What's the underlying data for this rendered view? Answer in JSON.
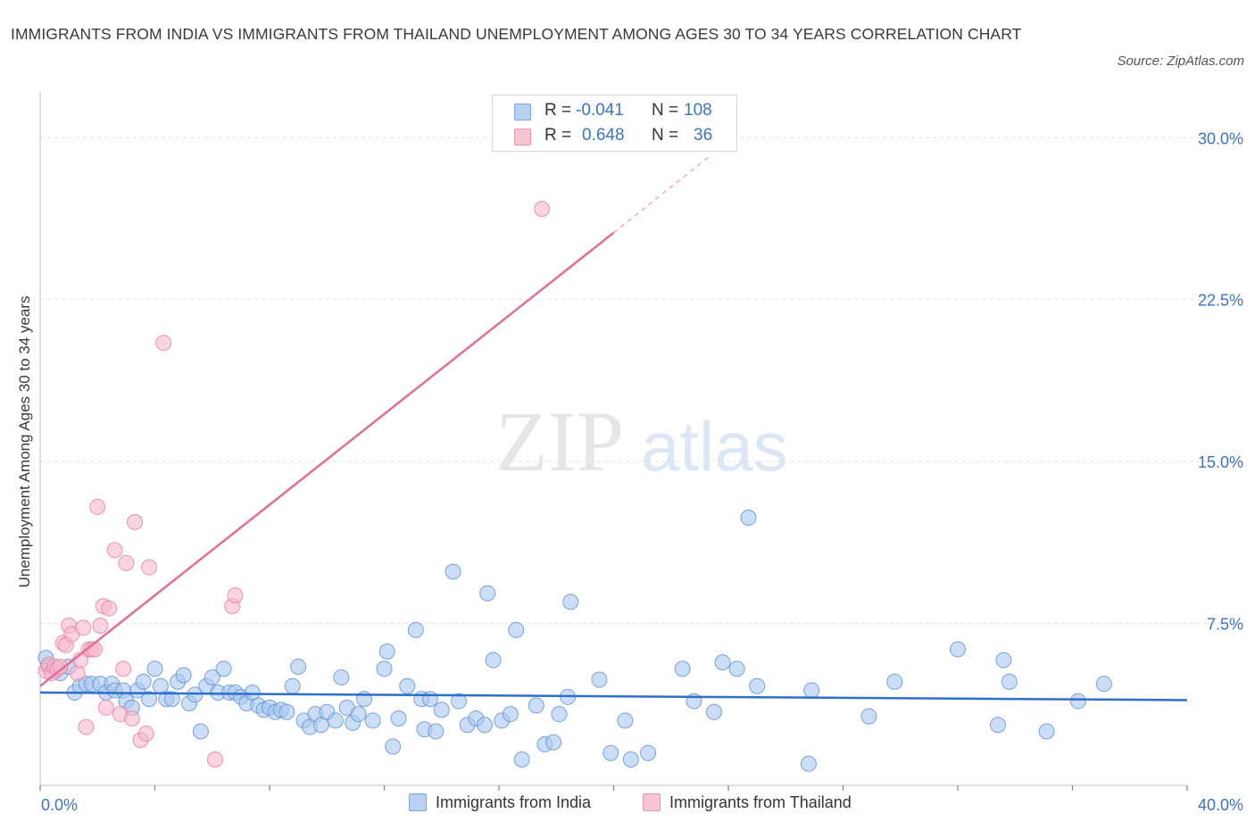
{
  "title": "IMMIGRANTS FROM INDIA VS IMMIGRANTS FROM THAILAND UNEMPLOYMENT AMONG AGES 30 TO 34 YEARS CORRELATION CHART",
  "source": "Source: ZipAtlas.com",
  "watermark": {
    "zip": "ZIP",
    "atlas": "atlas"
  },
  "legend": {
    "r_label": "R =",
    "n_label": "N =",
    "india": {
      "r": "-0.041",
      "n": "108"
    },
    "thailand": {
      "r": "0.648",
      "n": "36"
    }
  },
  "colors": {
    "india_fill": "#a9c8ef",
    "india_stroke": "#5b8fd6",
    "india_line": "#2f6fcc",
    "thailand_fill": "#f6b8cb",
    "thailand_stroke": "#e87da0",
    "thailand_line": "#e26e95",
    "axis_label": "#3b73c4",
    "grid": "#e2e2e2"
  },
  "chart_data": {
    "type": "scatter",
    "title": "IMMIGRANTS FROM INDIA VS IMMIGRANTS FROM THAILAND UNEMPLOYMENT AMONG AGES 30 TO 34 YEARS CORRELATION CHART",
    "xlabel": "",
    "ylabel": "Unemployment Among Ages 30 to 34 years",
    "xlim": [
      0,
      40
    ],
    "ylim": [
      0,
      31.5
    ],
    "x_tick_labels": [
      "0.0%",
      "40.0%"
    ],
    "y_ticks": [
      7.5,
      15.0,
      22.5,
      30.0
    ],
    "y_tick_labels": [
      "7.5%",
      "15.0%",
      "22.5%",
      "30.0%"
    ],
    "legend_position": "top-center",
    "series": [
      {
        "name": "Immigrants from India",
        "r": -0.041,
        "n": 108,
        "trend": {
          "x": [
            0,
            40
          ],
          "y": [
            4.3,
            3.95
          ]
        },
        "points": [
          [
            0.2,
            5.9
          ],
          [
            0.3,
            5.5
          ],
          [
            0.5,
            5.3
          ],
          [
            0.7,
            5.2
          ],
          [
            1.0,
            5.5
          ],
          [
            1.2,
            4.3
          ],
          [
            1.4,
            4.6
          ],
          [
            1.6,
            4.7
          ],
          [
            1.8,
            4.7
          ],
          [
            2.1,
            4.7
          ],
          [
            2.3,
            4.3
          ],
          [
            2.5,
            4.7
          ],
          [
            2.6,
            4.4
          ],
          [
            2.9,
            4.4
          ],
          [
            3.0,
            3.9
          ],
          [
            3.2,
            3.6
          ],
          [
            3.4,
            4.4
          ],
          [
            3.6,
            4.8
          ],
          [
            3.8,
            4.0
          ],
          [
            4.0,
            5.4
          ],
          [
            4.2,
            4.6
          ],
          [
            4.4,
            4.0
          ],
          [
            4.6,
            4.0
          ],
          [
            4.8,
            4.8
          ],
          [
            5.0,
            5.1
          ],
          [
            5.2,
            3.8
          ],
          [
            5.4,
            4.2
          ],
          [
            5.6,
            2.5
          ],
          [
            5.8,
            4.6
          ],
          [
            6.0,
            5.0
          ],
          [
            6.2,
            4.3
          ],
          [
            6.4,
            5.4
          ],
          [
            6.6,
            4.3
          ],
          [
            6.8,
            4.3
          ],
          [
            7.0,
            4.1
          ],
          [
            7.2,
            3.8
          ],
          [
            7.4,
            4.3
          ],
          [
            7.6,
            3.7
          ],
          [
            7.8,
            3.5
          ],
          [
            8.0,
            3.6
          ],
          [
            8.2,
            3.4
          ],
          [
            8.4,
            3.5
          ],
          [
            8.6,
            3.4
          ],
          [
            8.8,
            4.6
          ],
          [
            9.0,
            5.5
          ],
          [
            9.2,
            3.0
          ],
          [
            9.4,
            2.7
          ],
          [
            9.6,
            3.3
          ],
          [
            9.8,
            2.8
          ],
          [
            10.0,
            3.4
          ],
          [
            10.3,
            3.0
          ],
          [
            10.5,
            5.0
          ],
          [
            10.7,
            3.6
          ],
          [
            10.9,
            2.9
          ],
          [
            11.1,
            3.3
          ],
          [
            11.3,
            4.0
          ],
          [
            11.6,
            3.0
          ],
          [
            12.0,
            5.4
          ],
          [
            12.1,
            6.2
          ],
          [
            12.3,
            1.8
          ],
          [
            12.5,
            3.1
          ],
          [
            12.8,
            4.6
          ],
          [
            13.1,
            7.2
          ],
          [
            13.3,
            4.0
          ],
          [
            13.4,
            2.6
          ],
          [
            13.6,
            4.0
          ],
          [
            13.8,
            2.5
          ],
          [
            14.0,
            3.5
          ],
          [
            14.4,
            9.9
          ],
          [
            14.6,
            3.9
          ],
          [
            14.9,
            2.8
          ],
          [
            15.2,
            3.1
          ],
          [
            15.5,
            2.8
          ],
          [
            15.6,
            8.9
          ],
          [
            15.8,
            5.8
          ],
          [
            16.1,
            3.0
          ],
          [
            16.4,
            3.3
          ],
          [
            16.6,
            7.2
          ],
          [
            16.8,
            1.2
          ],
          [
            17.3,
            3.7
          ],
          [
            17.6,
            1.9
          ],
          [
            17.9,
            2.0
          ],
          [
            18.1,
            3.3
          ],
          [
            18.4,
            4.1
          ],
          [
            18.5,
            8.5
          ],
          [
            19.5,
            4.9
          ],
          [
            19.9,
            1.5
          ],
          [
            20.4,
            3.0
          ],
          [
            20.6,
            1.2
          ],
          [
            21.2,
            1.5
          ],
          [
            22.4,
            5.4
          ],
          [
            22.8,
            3.9
          ],
          [
            23.5,
            3.4
          ],
          [
            23.8,
            5.7
          ],
          [
            24.3,
            5.4
          ],
          [
            24.7,
            12.4
          ],
          [
            25.0,
            4.6
          ],
          [
            26.8,
            1.0
          ],
          [
            26.9,
            4.4
          ],
          [
            28.9,
            3.2
          ],
          [
            29.8,
            4.8
          ],
          [
            32.0,
            6.3
          ],
          [
            33.4,
            2.8
          ],
          [
            33.6,
            5.8
          ],
          [
            33.8,
            4.8
          ],
          [
            35.1,
            2.5
          ],
          [
            36.2,
            3.9
          ],
          [
            37.1,
            4.7
          ]
        ]
      },
      {
        "name": "Immigrants from Thailand",
        "r": 0.648,
        "n": 36,
        "trend": {
          "x": [
            0,
            20
          ],
          "y": [
            4.6,
            25.6
          ]
        },
        "trend_dashed": {
          "x": [
            20,
            23.4
          ],
          "y": [
            25.6,
            29.2
          ]
        },
        "points": [
          [
            0.2,
            5.3
          ],
          [
            0.3,
            5.6
          ],
          [
            0.4,
            5.2
          ],
          [
            0.5,
            5.5
          ],
          [
            0.6,
            5.4
          ],
          [
            0.7,
            5.5
          ],
          [
            0.8,
            6.6
          ],
          [
            0.9,
            6.5
          ],
          [
            1.0,
            7.4
          ],
          [
            1.1,
            7.0
          ],
          [
            1.3,
            5.2
          ],
          [
            1.4,
            5.8
          ],
          [
            1.5,
            7.3
          ],
          [
            1.6,
            2.7
          ],
          [
            1.7,
            6.3
          ],
          [
            1.8,
            6.3
          ],
          [
            1.9,
            6.3
          ],
          [
            2.0,
            12.9
          ],
          [
            2.1,
            7.4
          ],
          [
            2.2,
            8.3
          ],
          [
            2.3,
            3.6
          ],
          [
            2.4,
            8.2
          ],
          [
            2.6,
            10.9
          ],
          [
            2.8,
            3.3
          ],
          [
            2.9,
            5.4
          ],
          [
            3.0,
            10.3
          ],
          [
            3.2,
            3.1
          ],
          [
            3.3,
            12.2
          ],
          [
            3.5,
            2.1
          ],
          [
            3.7,
            2.4
          ],
          [
            3.8,
            10.1
          ],
          [
            4.3,
            20.5
          ],
          [
            6.7,
            8.3
          ],
          [
            6.8,
            8.8
          ],
          [
            6.1,
            1.2
          ],
          [
            17.5,
            26.7
          ]
        ]
      }
    ]
  },
  "bottom_legend": {
    "india": "Immigrants from India",
    "thailand": "Immigrants from Thailand"
  }
}
